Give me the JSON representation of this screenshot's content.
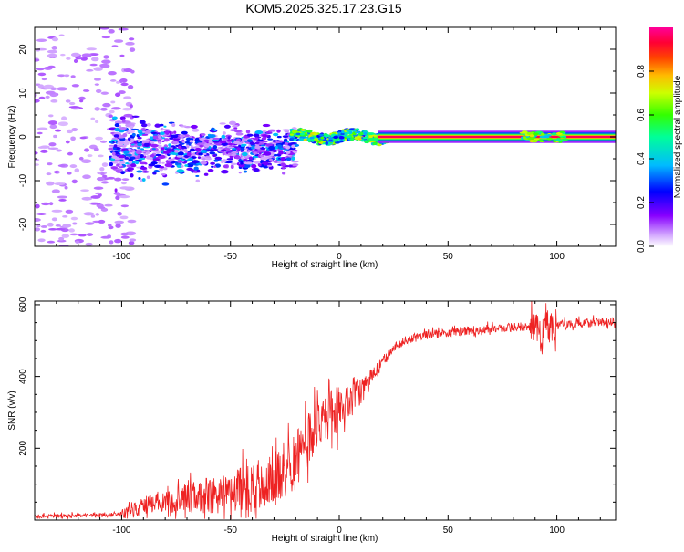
{
  "title": "KOM5.2025.325.17.23.G15",
  "chart_data": [
    {
      "type": "heatmap",
      "name": "spectrogram",
      "xlabel": "Height of straight line (km)",
      "ylabel": "Frequency (Hz)",
      "xlim": [
        -140,
        127
      ],
      "ylim": [
        -25,
        25
      ],
      "xticks": [
        -100,
        -50,
        0,
        50,
        100
      ],
      "xtick_labels": [
        "-100",
        "-50",
        "0",
        "50",
        "100"
      ],
      "yticks": [
        -20,
        -10,
        0,
        10,
        20
      ],
      "ytick_labels": [
        "-20",
        "-10",
        "0",
        "10",
        "20"
      ],
      "colorbar": {
        "label": "Normalized spectral amplitude",
        "range": [
          0,
          1
        ],
        "ticks": [
          0.0,
          0.2,
          0.4,
          0.6,
          0.8
        ],
        "tick_labels": [
          "0.0",
          "0.2",
          "0.4",
          "0.6",
          "0.8"
        ],
        "colormap": [
          "#ffffff",
          "#8800ff",
          "#0000ff",
          "#00ccff",
          "#00ff66",
          "#ccff00",
          "#ff8800",
          "#ff0044",
          "#ff00aa"
        ]
      },
      "features": [
        {
          "x_range": [
            -140,
            -100
          ],
          "freq_spread": 25,
          "amplitude": 0.05,
          "description": "sparse noise"
        },
        {
          "x_range": [
            -100,
            -20
          ],
          "freq_center": -3,
          "freq_spread": 6,
          "amplitude": 0.2
        },
        {
          "x_range": [
            -20,
            20
          ],
          "freq_center": 0,
          "freq_spread": 1.5,
          "amplitude": 0.5
        },
        {
          "x_range": [
            20,
            127
          ],
          "freq_center": 0,
          "freq_spread": 0.5,
          "amplitude": 0.95
        }
      ]
    },
    {
      "type": "line",
      "name": "snr",
      "xlabel": "Height of straight line (km)",
      "ylabel": "SNR (v/v)",
      "xlim": [
        -140,
        127
      ],
      "ylim": [
        0,
        610
      ],
      "xticks": [
        -100,
        -50,
        0,
        50,
        100
      ],
      "xtick_labels": [
        "-100",
        "-50",
        "0",
        "50",
        "100"
      ],
      "yticks": [
        200,
        400,
        600
      ],
      "ytick_labels": [
        "200",
        "400",
        "600"
      ],
      "color": "#ee2222",
      "series": [
        {
          "name": "SNR",
          "x": [
            -140,
            -120,
            -100,
            -95,
            -90,
            -80,
            -70,
            -60,
            -50,
            -40,
            -30,
            -25,
            -20,
            -15,
            -10,
            -5,
            0,
            5,
            10,
            15,
            20,
            25,
            30,
            40,
            50,
            60,
            70,
            80,
            90,
            93,
            95,
            97,
            100,
            110,
            120,
            127
          ],
          "y": [
            10,
            12,
            15,
            25,
            40,
            55,
            60,
            70,
            75,
            90,
            110,
            130,
            170,
            220,
            260,
            290,
            310,
            330,
            360,
            400,
            440,
            480,
            500,
            515,
            522,
            528,
            533,
            537,
            540,
            500,
            570,
            530,
            545,
            548,
            550,
            553
          ]
        }
      ]
    }
  ]
}
